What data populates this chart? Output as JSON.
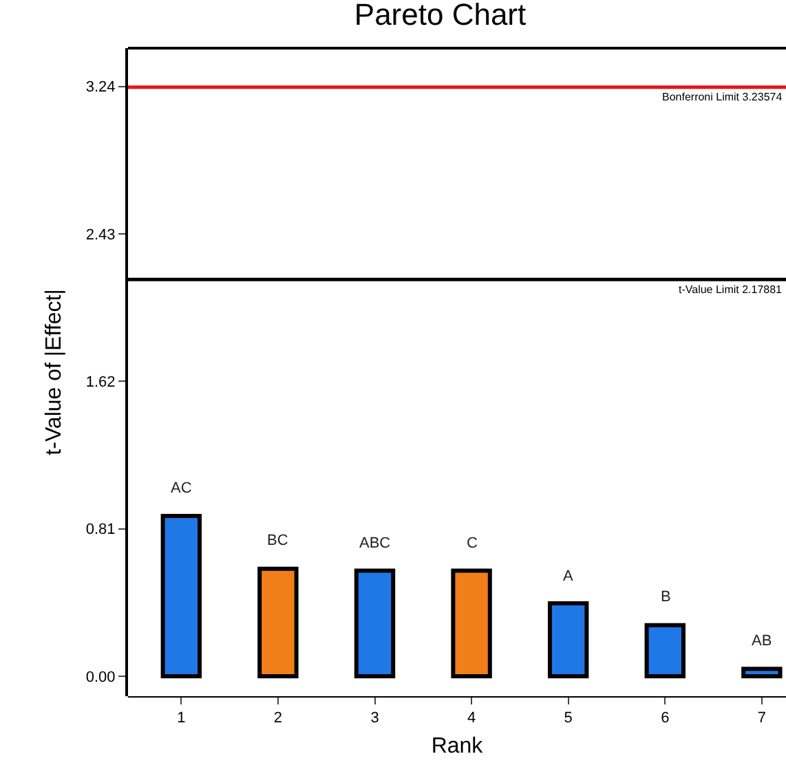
{
  "chart_data": {
    "type": "bar",
    "title": "Pareto Chart",
    "xlabel": "Rank",
    "ylabel": "t-Value of |Effect|",
    "categories": [
      "1",
      "2",
      "3",
      "4",
      "5",
      "6",
      "7"
    ],
    "values": [
      0.88,
      0.59,
      0.58,
      0.58,
      0.4,
      0.28,
      0.04
    ],
    "colors": [
      "#1f78e6",
      "#f07f1a",
      "#1f78e6",
      "#f07f1a",
      "#1f78e6",
      "#1f78e6",
      "#1f78e6"
    ],
    "ylim": [
      -0.11,
      3.45
    ],
    "yticks": [
      {
        "value": 0,
        "label": "0.00"
      },
      {
        "value": 0.81,
        "label": "0.81"
      },
      {
        "value": 1.62,
        "label": "1.62"
      },
      {
        "value": 2.43,
        "label": "2.43"
      },
      {
        "value": 3.24,
        "label": "3.24"
      }
    ],
    "ref_lines": [
      {
        "axis": "y",
        "value": 3.23574,
        "label": "Bonferroni Limit 3.23574",
        "color": "#e8141e"
      },
      {
        "axis": "y",
        "value": 2.17881,
        "label": "t-Value Limit 2.17881",
        "color": "#000000"
      }
    ],
    "value_labels": [
      "AC",
      "BC",
      "ABC",
      "C",
      "A",
      "B",
      "AB"
    ],
    "grid": false
  }
}
